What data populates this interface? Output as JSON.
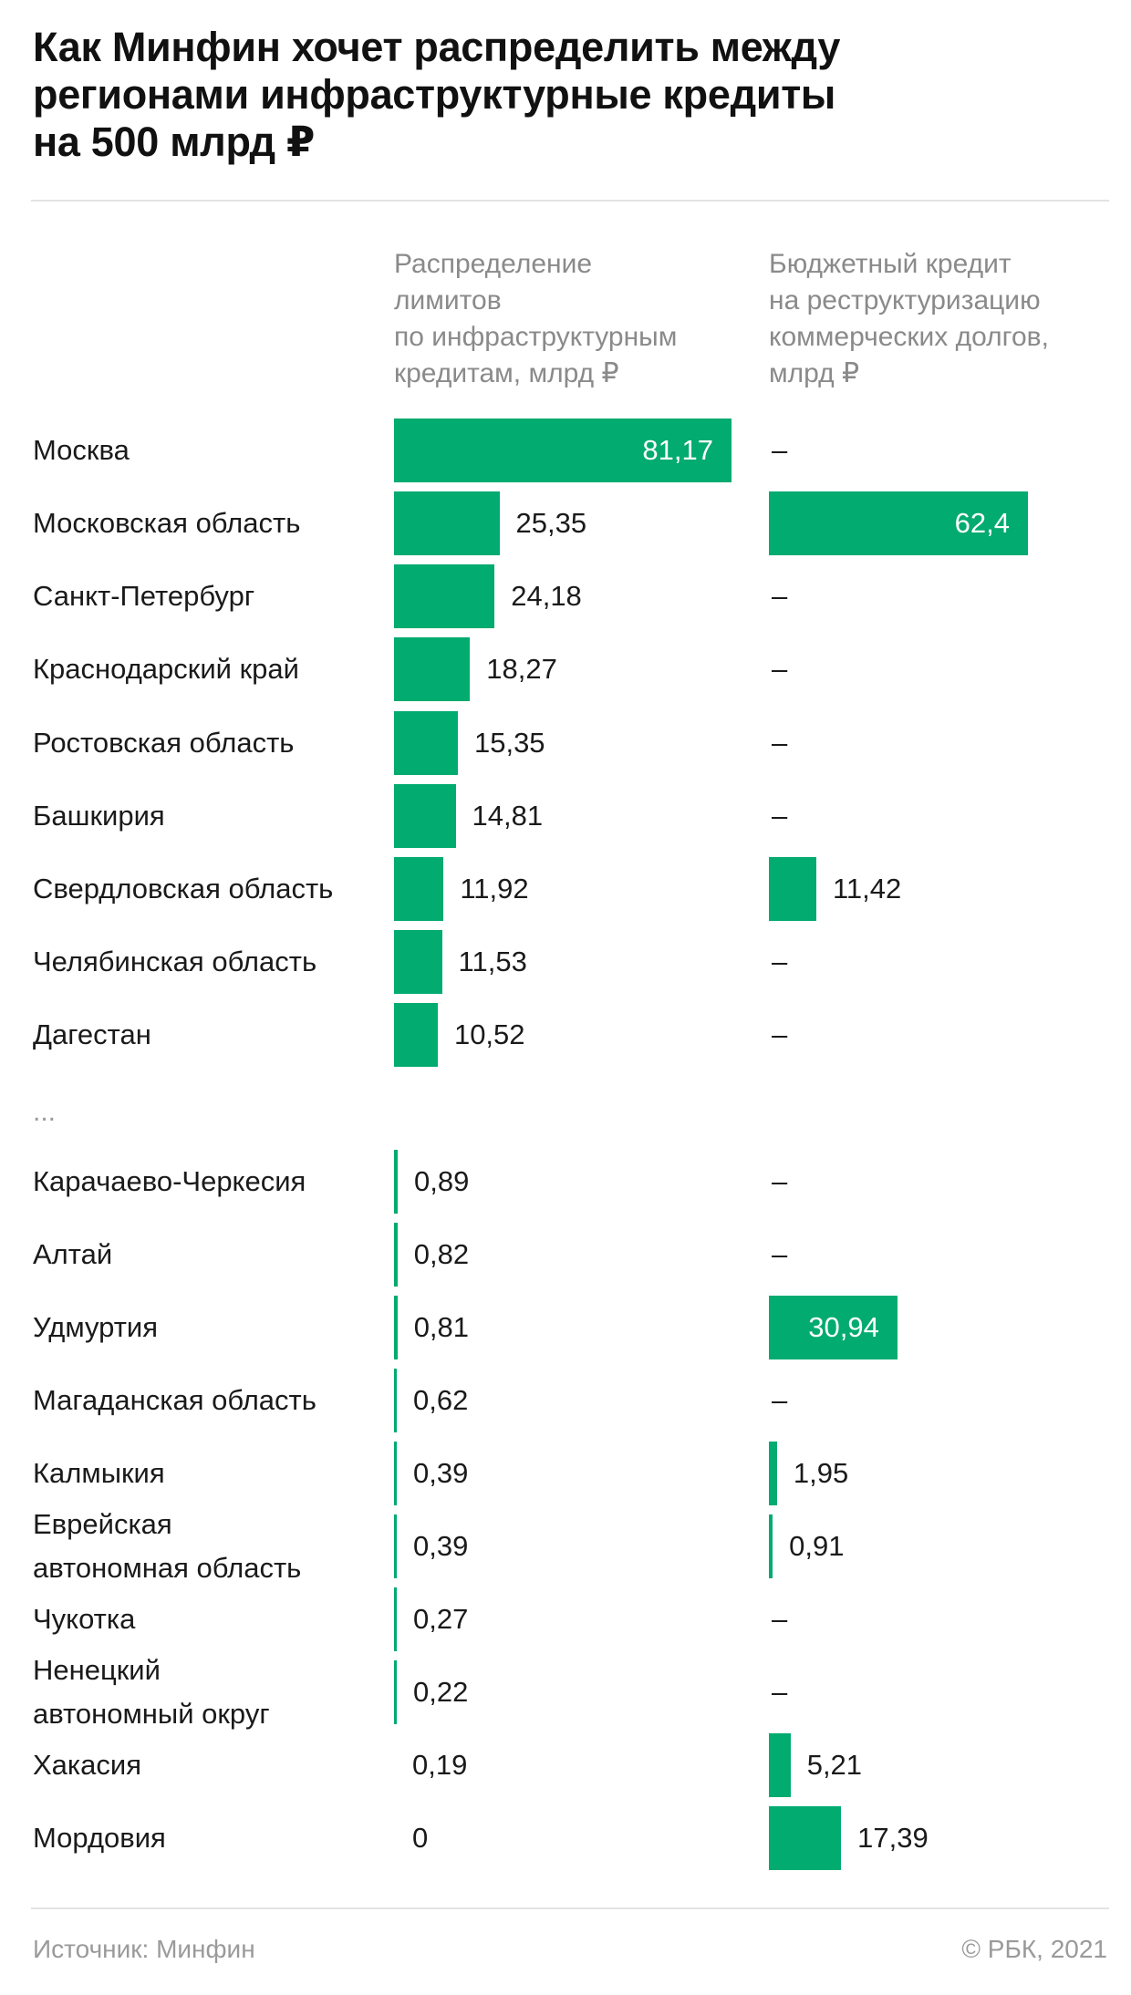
{
  "title_lines": [
    "Как Минфин хочет распределить между",
    "регионами инфраструктурные кредиты",
    "на 500 млрд  ₽"
  ],
  "source": "Источник: Минфин",
  "credit": "© РБК, 2021",
  "colors": {
    "bar": "#02ab6f"
  },
  "chart_data": {
    "type": "bar",
    "orientation": "horizontal",
    "title": "Как Минфин хочет распределить между регионами инфраструктурные кредиты на 500 млрд  ₽",
    "gap_marker": "...",
    "gap_after_index": 8,
    "series": [
      {
        "header_lines": [
          "Распределение",
          "лимитов",
          "по инфраструктурным",
          "кредитам, млрд ₽"
        ],
        "labels": [
          "81,17",
          "25,35",
          "24,18",
          "18,27",
          "15,35",
          "14,81",
          "11,92",
          "11,53",
          "10,52",
          "0,89",
          "0,82",
          "0,81",
          "0,62",
          "0,39",
          "0,39",
          "0,27",
          "0,22",
          "0,19",
          "0"
        ],
        "values": [
          81.17,
          25.35,
          24.18,
          18.27,
          15.35,
          14.81,
          11.92,
          11.53,
          10.52,
          0.89,
          0.82,
          0.81,
          0.62,
          0.39,
          0.39,
          0.27,
          0.22,
          0.19,
          0
        ]
      },
      {
        "header_lines": [
          "Бюджетный кредит",
          "на реструктуризацию",
          "коммерческих долгов,",
          "млрд ₽"
        ],
        "labels": [
          "–",
          "62,4",
          "–",
          "–",
          "–",
          "–",
          "11,42",
          "–",
          "–",
          "–",
          "–",
          "30,94",
          "–",
          "1,95",
          "0,91",
          "–",
          "–",
          "5,21",
          "17,39"
        ],
        "values": [
          null,
          62.4,
          null,
          null,
          null,
          null,
          11.42,
          null,
          null,
          null,
          null,
          30.94,
          null,
          1.95,
          0.91,
          null,
          null,
          5.21,
          17.39
        ]
      }
    ],
    "categories": [
      {
        "lines": [
          "Москва"
        ]
      },
      {
        "lines": [
          "Московская область"
        ]
      },
      {
        "lines": [
          "Санкт-Петербург"
        ]
      },
      {
        "lines": [
          "Краснодарский край"
        ]
      },
      {
        "lines": [
          "Ростовская область"
        ]
      },
      {
        "lines": [
          "Башкирия"
        ]
      },
      {
        "lines": [
          "Свердловская область"
        ]
      },
      {
        "lines": [
          "Челябинская область"
        ]
      },
      {
        "lines": [
          "Дагестан"
        ]
      },
      {
        "lines": [
          "Карачаево-Черкесия"
        ]
      },
      {
        "lines": [
          "Алтай"
        ]
      },
      {
        "lines": [
          "Удмуртия"
        ]
      },
      {
        "lines": [
          "Магаданская область"
        ]
      },
      {
        "lines": [
          "Калмыкия"
        ]
      },
      {
        "lines": [
          "Еврейская",
          "автономная область"
        ]
      },
      {
        "lines": [
          "Чукотка"
        ]
      },
      {
        "lines": [
          "Ненецкий",
          "автономный округ"
        ]
      },
      {
        "lines": [
          "Хакасия"
        ]
      },
      {
        "lines": [
          "Мордовия"
        ]
      }
    ]
  }
}
